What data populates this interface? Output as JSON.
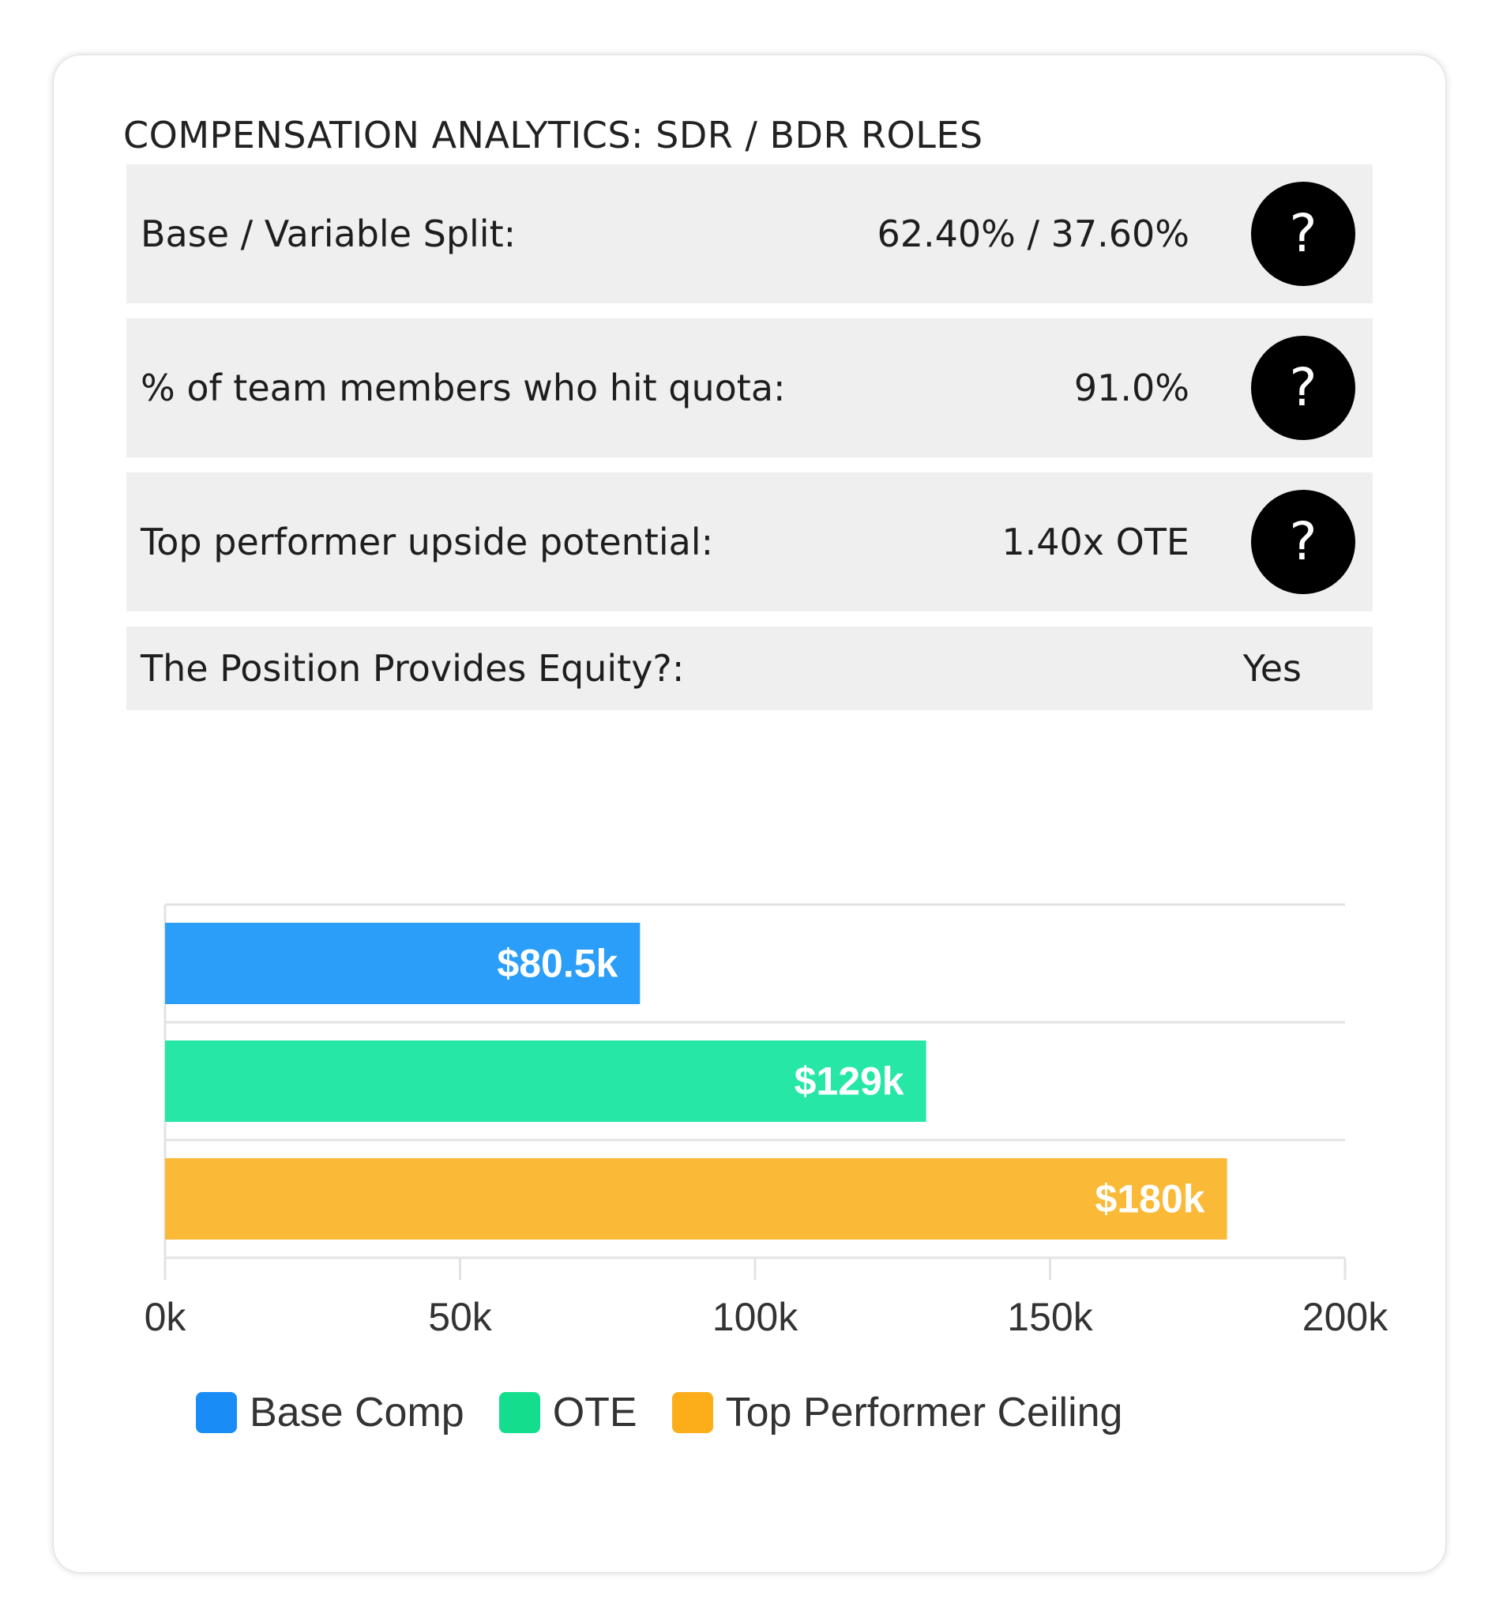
{
  "card": {
    "title": "COMPENSATION ANALYTICS: SDR / BDR ROLES"
  },
  "stats": [
    {
      "label": "Base / Variable Split:",
      "value": "62.40% / 37.60%",
      "help": "?"
    },
    {
      "label": "% of team members who hit quota:",
      "value": "91.0%",
      "help": "?"
    },
    {
      "label": "Top performer upside potential:",
      "value": "1.40x OTE",
      "help": "?"
    },
    {
      "label": "The Position Provides Equity?:",
      "value": "Yes"
    }
  ],
  "chart_data": {
    "type": "bar",
    "orientation": "horizontal",
    "title": "",
    "xlabel": "",
    "ylabel": "",
    "categories": [
      "Base Comp",
      "OTE",
      "Top Performer Ceiling"
    ],
    "values": [
      80.5,
      129,
      180
    ],
    "data_labels": [
      "$80.5k",
      "$129k",
      "$180k"
    ],
    "colors": [
      "#2a9ef8",
      "#26e7a6",
      "#fbb938"
    ],
    "xlim": [
      0,
      200
    ],
    "x_ticks": [
      0,
      50,
      100,
      150,
      200
    ],
    "x_tick_labels": [
      "0k",
      "50k",
      "100k",
      "150k",
      "200k"
    ],
    "grid": true,
    "legend": {
      "placement": "bottom",
      "entries": [
        "Base Comp",
        "OTE",
        "Top Performer Ceiling"
      ],
      "colors": [
        "#1a8cf5",
        "#14de8e",
        "#fbad1a"
      ]
    }
  }
}
